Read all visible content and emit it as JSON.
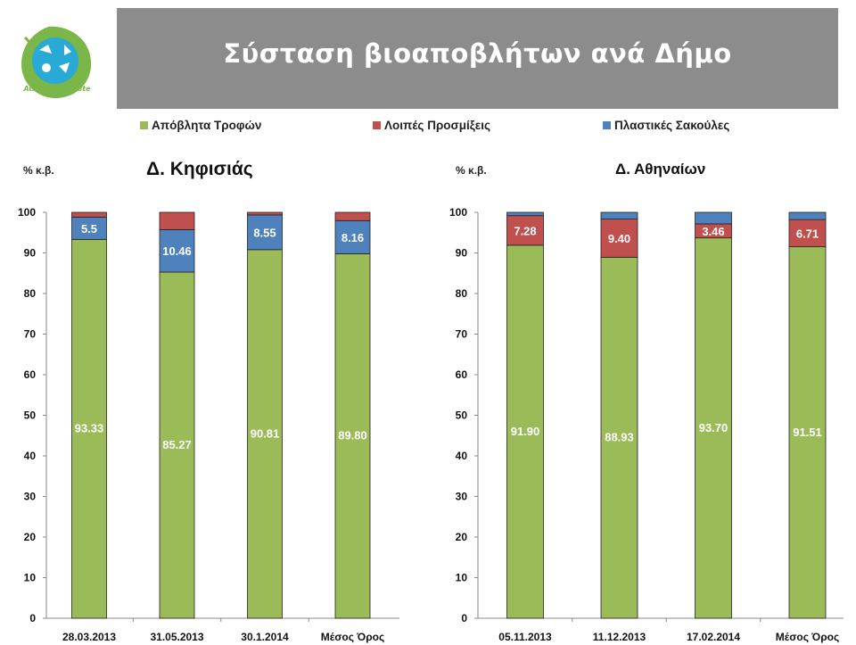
{
  "header": {
    "title": "Σύσταση βιοαποβλήτων ανά Δήμο"
  },
  "logo": {
    "text": "Athens Biowaste",
    "icon": "biowaste-logo-icon"
  },
  "legend": [
    {
      "label": "Απόβλητα Τροφών",
      "color": "#9bbb59"
    },
    {
      "label": "Λοιπές Προσμίξεις",
      "color": "#c0504d"
    },
    {
      "label": "Πλαστικές Σακούλες",
      "color": "#4f81bd"
    }
  ],
  "chart_data": [
    {
      "type": "bar",
      "stacked": true,
      "title": "Δ. Κηφισιάς",
      "ylabel": "% κ.β.",
      "xlabel": "",
      "ylim": [
        0,
        100
      ],
      "yticks": [
        0,
        10,
        20,
        30,
        40,
        50,
        60,
        70,
        80,
        90,
        100
      ],
      "grid": false,
      "categories": [
        "28.03.2013",
        "31.05.2013",
        "30.1.2014",
        "Μέσος Όρος"
      ],
      "series": [
        {
          "name": "Απόβλητα Τροφών",
          "color": "#9bbb59",
          "values": [
            93.33,
            85.27,
            90.81,
            89.8
          ],
          "labels": [
            "93.33",
            "85.27",
            "90.81",
            "89.80"
          ]
        },
        {
          "name": "Πλαστικές Σακούλες",
          "color": "#4f81bd",
          "values": [
            5.5,
            10.46,
            8.55,
            8.16
          ],
          "labels": [
            "5.5",
            "10.46",
            "8.55",
            "8.16"
          ]
        },
        {
          "name": "Λοιπές Προσμίξεις",
          "color": "#c0504d",
          "values": [
            1.17,
            4.27,
            0.64,
            2.04
          ],
          "labels": [
            null,
            null,
            null,
            null
          ]
        }
      ]
    },
    {
      "type": "bar",
      "stacked": true,
      "title": "Δ. Αθηναίων",
      "ylabel": "% κ.β.",
      "xlabel": "",
      "ylim": [
        0,
        100
      ],
      "yticks": [
        0,
        10,
        20,
        30,
        40,
        50,
        60,
        70,
        80,
        90,
        100
      ],
      "grid": false,
      "categories": [
        "05.11.2013",
        "11.12.2013",
        "17.02.2014",
        "Μέσος Όρος"
      ],
      "series": [
        {
          "name": "Απόβλητα Τροφών",
          "color": "#9bbb59",
          "values": [
            91.9,
            88.93,
            93.7,
            91.51
          ],
          "labels": [
            "91.90",
            "88.93",
            "93.70",
            "91.51"
          ]
        },
        {
          "name": "Λοιπές Προσμίξεις",
          "color": "#c0504d",
          "values": [
            7.28,
            9.4,
            3.46,
            6.71
          ],
          "labels": [
            "7.28",
            "9.40",
            "3.46",
            "6.71"
          ]
        },
        {
          "name": "Πλαστικές Σακούλες",
          "color": "#4f81bd",
          "values": [
            0.82,
            1.67,
            2.84,
            1.78
          ],
          "labels": [
            null,
            null,
            null,
            null
          ]
        }
      ]
    }
  ]
}
